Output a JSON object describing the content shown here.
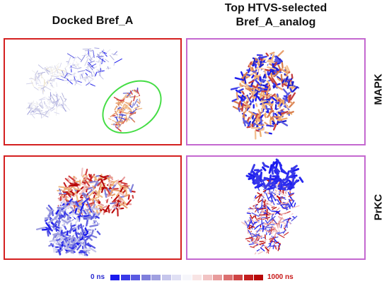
{
  "headers": {
    "left": "Docked Bref_A",
    "right_line1": "Top HTVS-selected",
    "right_line2": "Bref_A_analog"
  },
  "rows": [
    "MAPK",
    "PrKC"
  ],
  "legend": {
    "min_label": "0 ns",
    "max_label": "1000 ns",
    "colors": [
      "#1a1aee",
      "#3a3ae8",
      "#5a5ae2",
      "#7f7fdc",
      "#a0a0e0",
      "#c6c6ec",
      "#e0e0f4",
      "#f6f6fb",
      "#f8e4e4",
      "#f2c4c4",
      "#e89c9c",
      "#dc7070",
      "#cf4444",
      "#c41e1e",
      "#b80808"
    ]
  },
  "colors": {
    "panel_left_border": "#d42020",
    "panel_right_border": "#c468d0",
    "highlight_ellipse": "#44dd44"
  }
}
